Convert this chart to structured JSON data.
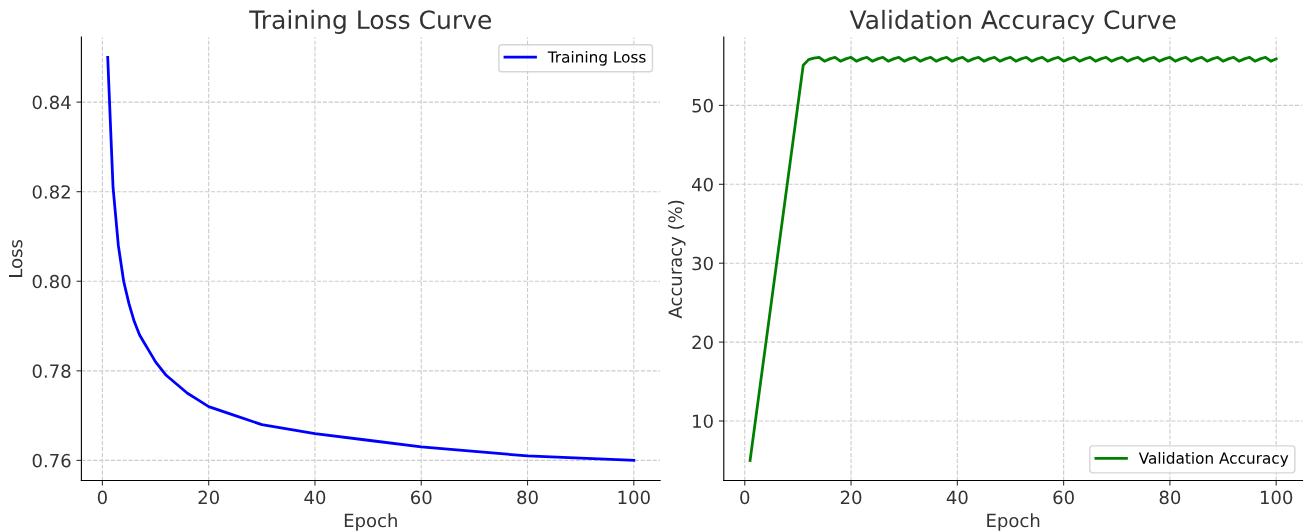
{
  "chart_data": [
    {
      "type": "line",
      "title": "Training Loss Curve",
      "xlabel": "Epoch",
      "ylabel": "Loss",
      "grid": true,
      "legend": "top right",
      "line_style": "solid",
      "marker": "none",
      "xlim": [
        -3.95,
        104.95
      ],
      "xticks": [
        0,
        20,
        40,
        60,
        80,
        100
      ],
      "ylim": [
        0.7555,
        0.8545
      ],
      "yticks": [
        0.76,
        0.78,
        {
          "value": 0.8,
          "label": "0.80"
        },
        0.82,
        0.84
      ],
      "series": [
        {
          "name": "Training Loss",
          "color": "#0000ff",
          "x": [
            1,
            2,
            3,
            4,
            5,
            6,
            7,
            8,
            9,
            10,
            12,
            14,
            16,
            18,
            20,
            25,
            30,
            35,
            40,
            50,
            60,
            70,
            80,
            90,
            100
          ],
          "values": [
            0.85,
            0.821,
            0.808,
            0.8,
            0.795,
            0.791,
            0.788,
            0.786,
            0.784,
            0.782,
            0.779,
            0.777,
            0.775,
            0.7735,
            0.772,
            0.77,
            0.768,
            0.767,
            0.766,
            0.7645,
            0.763,
            0.762,
            0.761,
            0.7605,
            0.76
          ]
        }
      ]
    },
    {
      "type": "line",
      "title": "Validation Accuracy Curve",
      "xlabel": "Epoch",
      "ylabel": "Accuracy (%)",
      "grid": true,
      "legend": "bottom right",
      "line_style": "solid",
      "marker": "none",
      "xlim": [
        -3.95,
        104.95
      ],
      "xticks": [
        0,
        20,
        40,
        60,
        80,
        100
      ],
      "ylim": [
        2.45,
        58.65
      ],
      "yticks": [
        10,
        20,
        30,
        40,
        50
      ],
      "series": [
        {
          "name": "Validation Accuracy",
          "color": "#008000",
          "x": [
            1,
            11,
            12,
            13,
            14,
            15,
            16,
            17,
            18,
            19,
            20,
            21,
            22,
            23,
            24,
            25,
            26,
            27,
            28,
            29,
            30,
            31,
            32,
            33,
            34,
            35,
            36,
            37,
            38,
            39,
            40,
            41,
            42,
            43,
            44,
            45,
            46,
            47,
            48,
            49,
            50,
            51,
            52,
            53,
            54,
            55,
            56,
            57,
            58,
            59,
            60,
            61,
            62,
            63,
            64,
            65,
            66,
            67,
            68,
            69,
            70,
            71,
            72,
            73,
            74,
            75,
            76,
            77,
            78,
            79,
            80,
            81,
            82,
            83,
            84,
            85,
            86,
            87,
            88,
            89,
            90,
            91,
            92,
            93,
            94,
            95,
            96,
            97,
            98,
            99,
            100
          ],
          "values": [
            5,
            55.1,
            55.8,
            56,
            56.1,
            55.6,
            55.9,
            56.1,
            55.6,
            55.9,
            56.1,
            55.6,
            55.9,
            56.1,
            55.6,
            55.9,
            56.1,
            55.6,
            55.9,
            56.1,
            55.6,
            55.9,
            56.1,
            55.6,
            55.9,
            56.1,
            55.6,
            55.9,
            56.1,
            55.6,
            55.9,
            56.1,
            55.6,
            55.9,
            56.1,
            55.6,
            55.9,
            56.1,
            55.6,
            55.9,
            56.1,
            55.6,
            55.9,
            56.1,
            55.6,
            55.9,
            56.1,
            55.6,
            55.9,
            56.1,
            55.6,
            55.9,
            56.1,
            55.6,
            55.9,
            56.1,
            55.6,
            55.9,
            56.1,
            55.6,
            55.9,
            56.1,
            55.6,
            55.9,
            56.1,
            55.6,
            55.9,
            56.1,
            55.6,
            55.9,
            56.1,
            55.6,
            55.9,
            56.1,
            55.6,
            55.9,
            56.1,
            55.6,
            55.9,
            56.1,
            55.6,
            55.9,
            56.1,
            55.6,
            55.9,
            56.1,
            55.6,
            55.9,
            56.1,
            55.6,
            55.9
          ]
        }
      ]
    }
  ]
}
